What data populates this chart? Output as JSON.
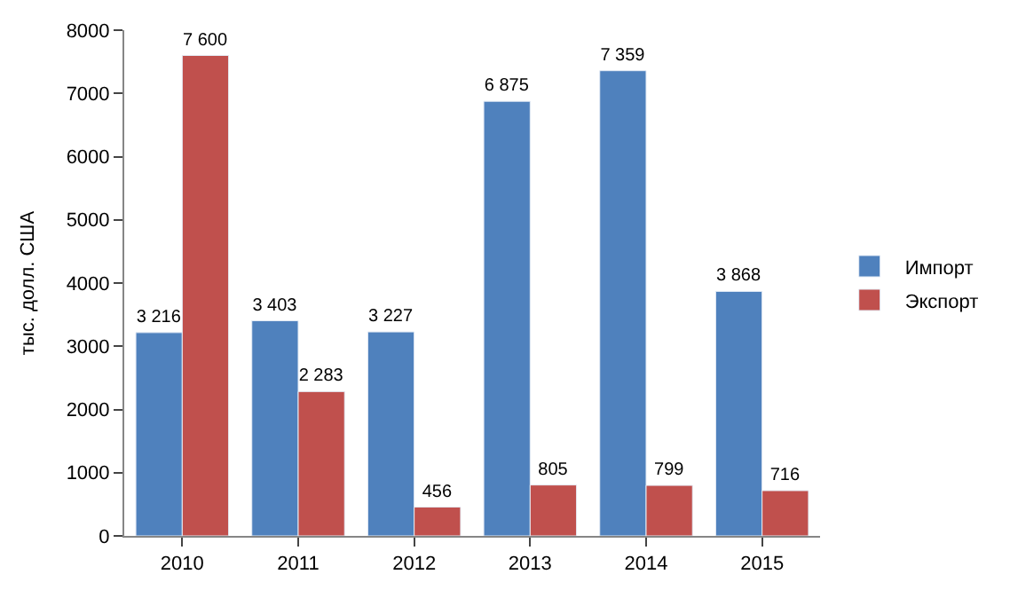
{
  "chart_data": {
    "type": "bar",
    "ylabel": "тыс. долл. США",
    "categories": [
      "2010",
      "2011",
      "2012",
      "2013",
      "2014",
      "2015"
    ],
    "series": [
      {
        "name": "Импорт",
        "color": "#4f81bd",
        "values": [
          3216,
          3403,
          3227,
          6875,
          7359,
          3868
        ],
        "value_labels": [
          "3 216",
          "3 403",
          "3 227",
          "6 875",
          "7 359",
          "3 868"
        ]
      },
      {
        "name": "Экспорт",
        "color": "#c0504d",
        "values": [
          7600,
          2283,
          456,
          805,
          799,
          716
        ],
        "value_labels": [
          "7 600",
          "2 283",
          "456",
          "805",
          "799",
          "716"
        ]
      }
    ],
    "ylim": [
      0,
      8000
    ],
    "yticks": [
      0,
      1000,
      2000,
      3000,
      4000,
      5000,
      6000,
      7000,
      8000
    ],
    "legend": "right"
  }
}
